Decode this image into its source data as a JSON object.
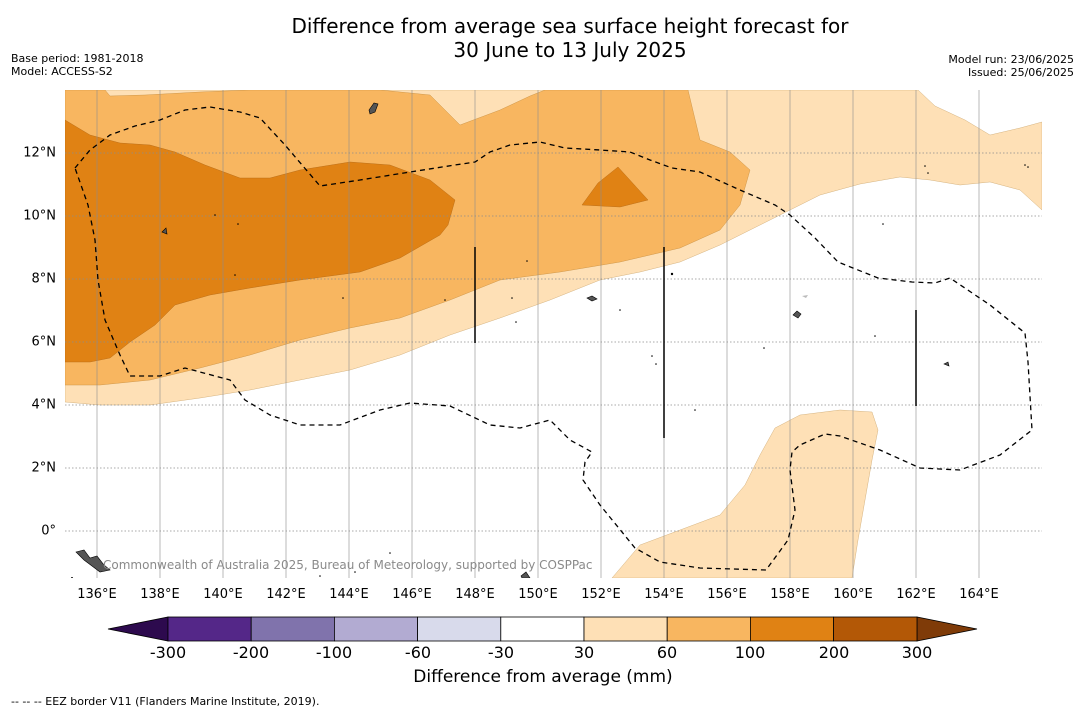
{
  "title_line1": "Difference from average sea surface height forecast for",
  "title_line2": "30 June to 13 July 2025",
  "base_period": "Base period: 1981-2018",
  "model": "Model: ACCESS-S2",
  "model_run": "Model run: 23/06/2025",
  "issued": "Issued: 25/06/2025",
  "credit": "Commonwealth of Australia 2025, Bureau of Meteorology, supported by COSPPac",
  "x_ticks": [
    "136°E",
    "138°E",
    "140°E",
    "142°E",
    "144°E",
    "146°E",
    "148°E",
    "150°E",
    "152°E",
    "154°E",
    "156°E",
    "158°E",
    "160°E",
    "162°E",
    "164°E"
  ],
  "y_ticks": [
    "12°N",
    "10°N",
    "8°N",
    "6°N",
    "4°N",
    "2°N",
    "0°"
  ],
  "legend": {
    "title": "Difference from average (mm)",
    "ticks": [
      "-300",
      "-200",
      "-100",
      "-60",
      "-30",
      "30",
      "60",
      "100",
      "200",
      "300"
    ],
    "colors": {
      "below_min": "#2d0a4e",
      "bins": [
        "#542788",
        "#8073ac",
        "#b2abd2",
        "#d8daeb",
        "#ffffff",
        "#fee0b6",
        "#f8b660",
        "#e08214",
        "#b35806"
      ],
      "above_max": "#7f3b08"
    }
  },
  "footnote": "--  --  -- EEZ border V11 (Flanders Marine Institute, 2019)."
}
